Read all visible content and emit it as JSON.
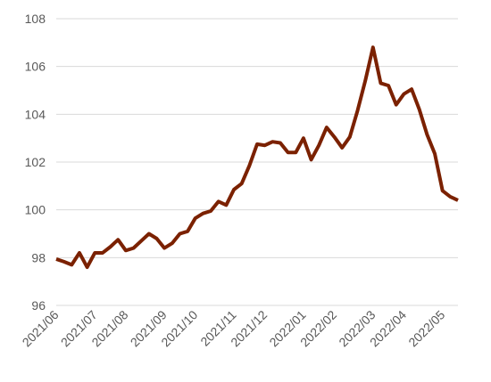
{
  "chart_data": {
    "type": "line",
    "categories": [
      "2021/06",
      null,
      null,
      null,
      null,
      "2021/07",
      null,
      null,
      null,
      "2021/08",
      null,
      null,
      null,
      null,
      "2021/09",
      null,
      null,
      null,
      "2021/10",
      null,
      null,
      null,
      null,
      "2021/11",
      null,
      null,
      null,
      "2021/12",
      null,
      null,
      null,
      null,
      "2022/01",
      null,
      null,
      null,
      "2022/02",
      null,
      null,
      null,
      null,
      "2022/03",
      null,
      null,
      null,
      "2022/04",
      null,
      null,
      null,
      null,
      "2022/05",
      null,
      null
    ],
    "series": [
      {
        "color": "#7b2100",
        "values": [
          97.94,
          97.83,
          97.7,
          98.2,
          97.6,
          98.2,
          98.2,
          98.45,
          98.75,
          98.3,
          98.4,
          98.7,
          99.0,
          98.8,
          98.4,
          98.6,
          99.0,
          99.1,
          99.65,
          99.85,
          99.95,
          100.35,
          100.2,
          100.85,
          101.1,
          101.85,
          102.75,
          102.7,
          102.85,
          102.8,
          102.4,
          102.4,
          103.0,
          102.1,
          102.7,
          103.45,
          103.05,
          102.6,
          103.05,
          104.15,
          105.4,
          106.8,
          105.3,
          105.2,
          104.4,
          104.85,
          105.05,
          104.2,
          103.15,
          102.35,
          100.8,
          100.55,
          100.4
        ]
      }
    ],
    "ylim": [
      96,
      108
    ],
    "yticks": [
      96,
      98,
      100,
      102,
      104,
      106,
      108
    ],
    "grid": true
  }
}
